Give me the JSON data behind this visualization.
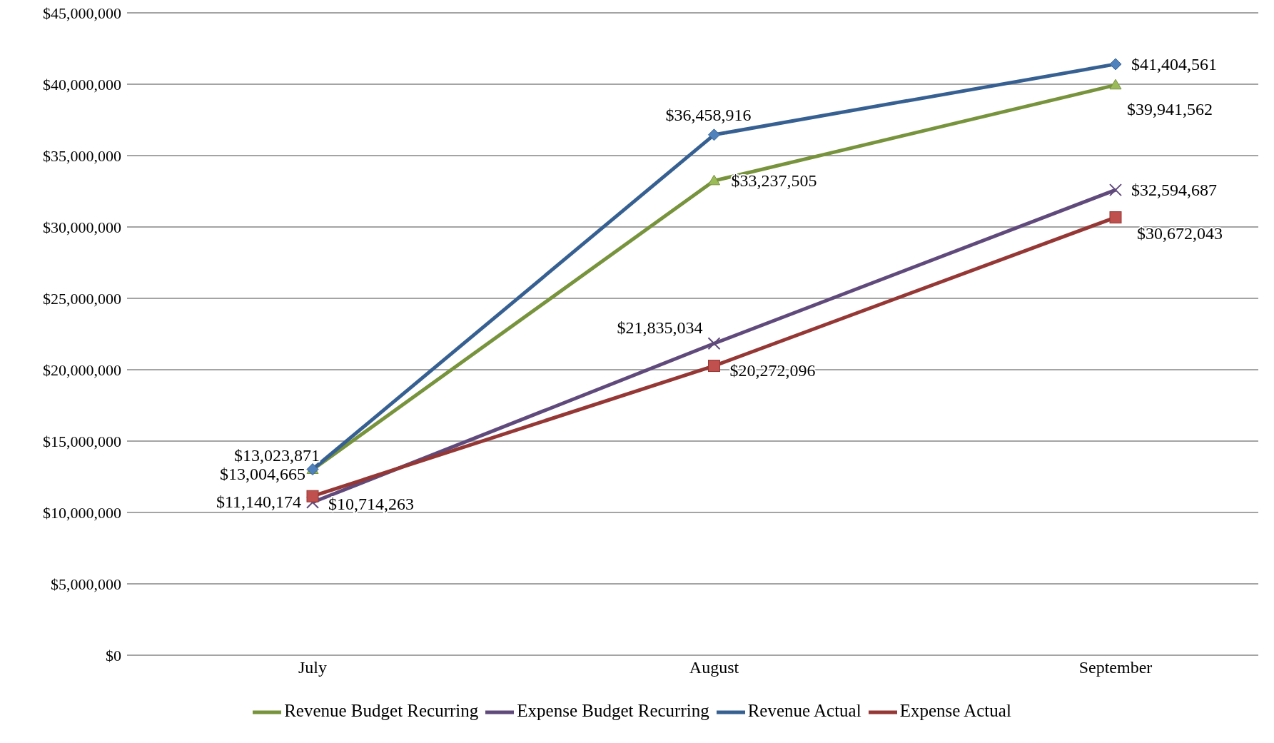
{
  "chart_data": {
    "type": "line",
    "categories": [
      "July",
      "August",
      "September"
    ],
    "series": [
      {
        "name": "Revenue Budget Recurring",
        "color": "#77933c",
        "marker": "triangle",
        "values": [
          13004665,
          33237505,
          39941562
        ],
        "value_labels": [
          "$13,004,665",
          "$33,237,505",
          "$39,941,562"
        ]
      },
      {
        "name": "Expense Budget Recurring",
        "color": "#604a7b",
        "marker": "cross",
        "values": [
          10714263,
          21835034,
          32594687
        ],
        "value_labels": [
          "$10,714,263",
          "$21,835,034",
          "$32,594,687"
        ]
      },
      {
        "name": "Revenue Actual",
        "color": "#376092",
        "marker": "diamond",
        "values": [
          13023871,
          36458916,
          41404561
        ],
        "value_labels": [
          "$13,023,871",
          "$36,458,916",
          "$41,404,561"
        ]
      },
      {
        "name": "Expense Actual",
        "color": "#953735",
        "marker": "square",
        "values": [
          11140174,
          20272096,
          30672043
        ],
        "value_labels": [
          "$11,140,174",
          "$20,272,096",
          "$30,672,043"
        ]
      }
    ],
    "ylim": [
      0,
      45000000
    ],
    "yticks": [
      {
        "value": 0,
        "label": "$0"
      },
      {
        "value": 5000000,
        "label": "$5,000,000"
      },
      {
        "value": 10000000,
        "label": "$10,000,000"
      },
      {
        "value": 15000000,
        "label": "$15,000,000"
      },
      {
        "value": 20000000,
        "label": "$20,000,000"
      },
      {
        "value": 25000000,
        "label": "$25,000,000"
      },
      {
        "value": 30000000,
        "label": "$30,000,000"
      },
      {
        "value": 35000000,
        "label": "$35,000,000"
      },
      {
        "value": 40000000,
        "label": "$40,000,000"
      },
      {
        "value": 45000000,
        "label": "$45,000,000"
      }
    ],
    "grid": "y",
    "legend": "bottom"
  }
}
